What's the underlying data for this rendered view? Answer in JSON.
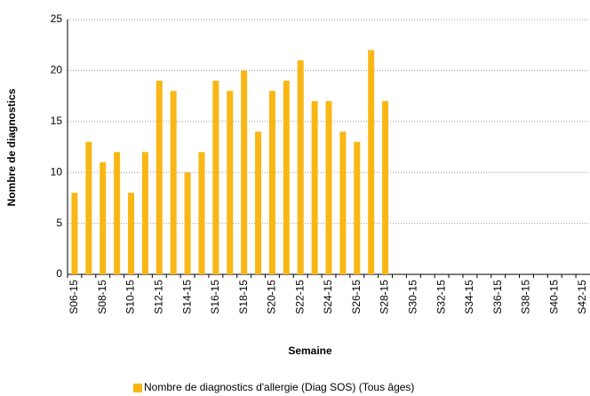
{
  "chart_data": {
    "type": "bar",
    "x_label": "Semaine",
    "y_label": "Nombre de diagnostics",
    "categories": [
      "S06-15",
      null,
      "S08-15",
      null,
      "S10-15",
      null,
      "S12-15",
      null,
      "S14-15",
      null,
      "S16-15",
      null,
      "S18-15",
      null,
      "S20-15",
      null,
      "S22-15",
      null,
      "S24-15",
      null,
      "S26-15",
      null,
      "S28-15",
      null,
      "S30-15",
      null,
      "S32-15",
      null,
      "S34-15",
      null,
      "S36-15",
      null,
      "S38-15",
      null,
      "S40-15",
      null,
      "S42-15"
    ],
    "series": [
      {
        "name": "Nombre de diagnostics d'allergie (Diag SOS) (Tous âges)",
        "color": "#f9b715",
        "values": [
          8,
          13,
          11,
          12,
          8,
          12,
          19,
          18,
          10,
          12,
          19,
          18,
          20,
          14,
          18,
          19,
          21,
          17,
          17,
          14,
          13,
          22,
          17,
          null,
          null,
          null,
          null,
          null,
          null,
          null,
          null,
          null,
          null,
          null,
          null,
          null,
          null
        ]
      }
    ],
    "ylim": [
      0,
      25
    ],
    "yticks": [
      0,
      5,
      10,
      15,
      20,
      25
    ],
    "grid": true,
    "legend": "bottom"
  }
}
